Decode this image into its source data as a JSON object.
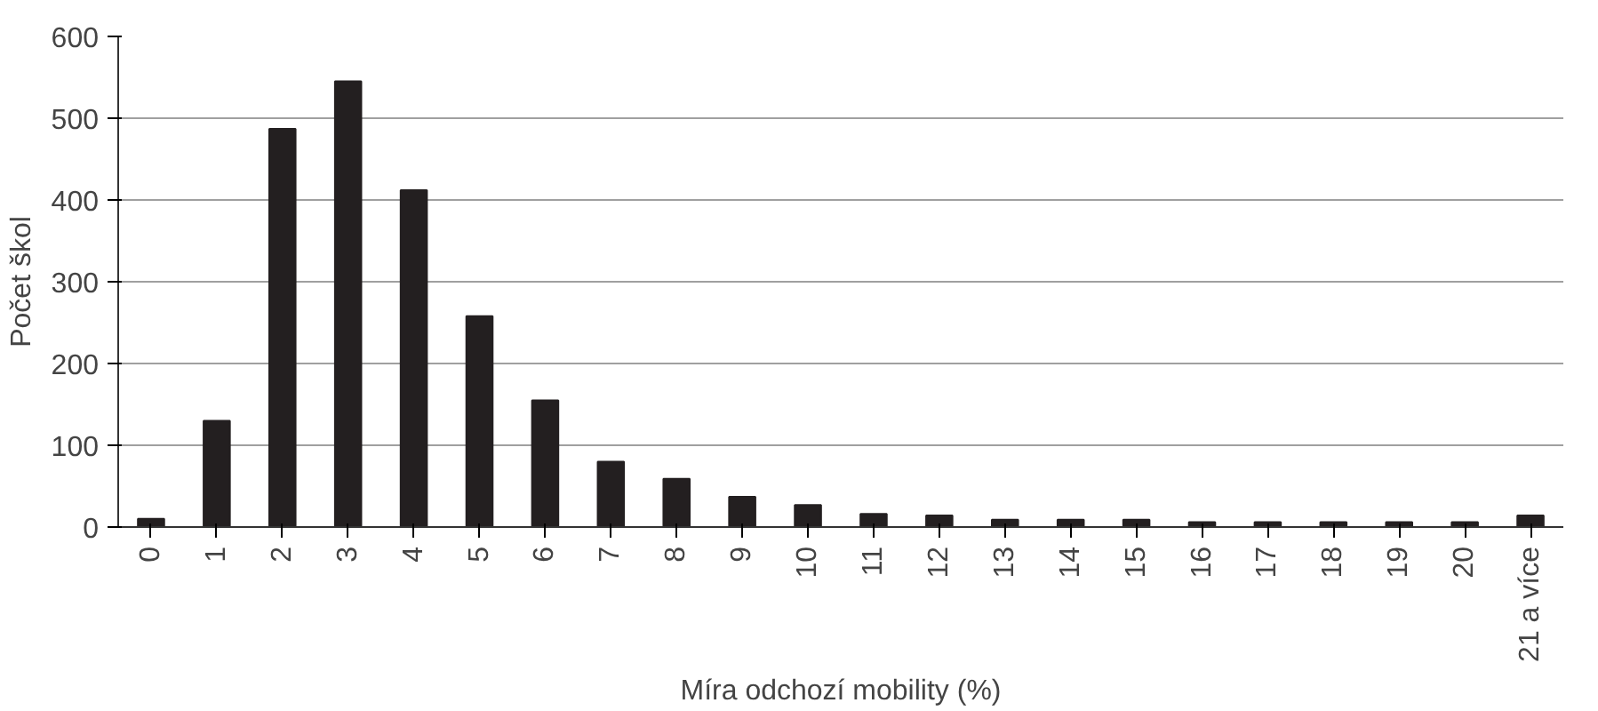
{
  "chart_data": {
    "type": "bar",
    "xlabel": "Míra odchozí mobility (%)",
    "ylabel": "Počet škol",
    "categories": [
      "0",
      "1",
      "2",
      "3",
      "4",
      "5",
      "6",
      "7",
      "8",
      "9",
      "10",
      "11",
      "12",
      "13",
      "14",
      "15",
      "16",
      "17",
      "18",
      "19",
      "20",
      "21 a více"
    ],
    "values": [
      10,
      130,
      487,
      545,
      412,
      258,
      155,
      80,
      59,
      37,
      27,
      16,
      14,
      9,
      9,
      9,
      6,
      6,
      6,
      6,
      6,
      14
    ],
    "color": "#231f20",
    "ylim": [
      0,
      600
    ],
    "yticks": [
      0,
      100,
      200,
      300,
      400,
      500,
      600
    ],
    "grid": "y"
  }
}
